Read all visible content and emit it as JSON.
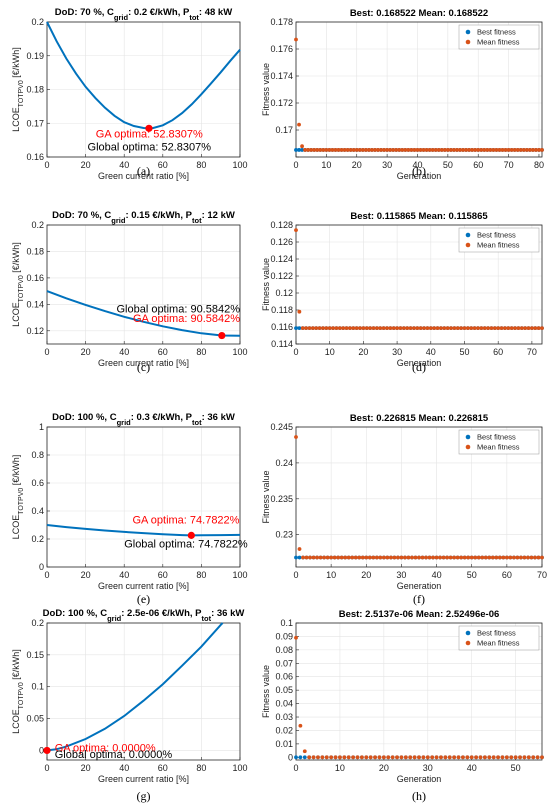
{
  "chart_data": [
    {
      "id": "a",
      "type": "line",
      "caption": "(a)",
      "title": {
        "pre": "DoD: 70 %, C",
        "sub1": "grid",
        "mid": ": 0.2 €/kWh, P",
        "sub2": "tot",
        "post": ": 48 kW"
      },
      "ylabel": {
        "main": "LCOE",
        "sub": "TOTPV0",
        "post": " [€/kWh]"
      },
      "xlabel": "Green current ratio [%]",
      "xlim": [
        0,
        100
      ],
      "ylim": [
        0.16,
        0.2
      ],
      "xticks": [
        0,
        20,
        40,
        60,
        80,
        100
      ],
      "yticks": [
        0.16,
        0.17,
        0.18,
        0.19,
        0.2
      ],
      "ytick_labels": [
        "0.16",
        "0.17",
        "0.18",
        "0.19",
        "0.2"
      ],
      "series": [
        {
          "color": "#0072BD",
          "x": [
            0,
            5,
            10,
            15,
            20,
            25,
            30,
            35,
            40,
            45,
            50,
            52.83,
            55,
            60,
            65,
            70,
            75,
            80,
            85,
            90,
            95,
            100
          ],
          "y": [
            0.2,
            0.1943,
            0.1892,
            0.1847,
            0.1808,
            0.1775,
            0.1746,
            0.1722,
            0.1703,
            0.1692,
            0.1686,
            0.1685,
            0.1686,
            0.1694,
            0.1709,
            0.173,
            0.1756,
            0.1786,
            0.1818,
            0.1851,
            0.1885,
            0.1918
          ]
        }
      ],
      "optimum": {
        "x": 52.8307,
        "y": 0.1685
      },
      "annotations": [
        {
          "text": "GA optima: 52.8307%",
          "color": "#FF0000",
          "anchor": [
            53,
            0.1658
          ]
        },
        {
          "text": "Global optima: 52.8307%",
          "color": "#000000",
          "anchor": [
            53,
            0.1619
          ]
        }
      ]
    },
    {
      "id": "b",
      "type": "scatter",
      "caption": "(b)",
      "title": "Best: 0.168522 Mean: 0.168522",
      "ylabel": "Fitness value",
      "xlabel": "Generation",
      "xlim": [
        0,
        81
      ],
      "ylim": [
        0.168,
        0.178
      ],
      "xticks": [
        0,
        10,
        20,
        30,
        40,
        50,
        60,
        70,
        80
      ],
      "yticks": [
        0.168,
        0.17,
        0.172,
        0.174,
        0.176,
        0.178
      ],
      "ytick_labels": [
        "",
        "0.17",
        "0.172",
        "0.174",
        "0.176",
        "0.178"
      ],
      "generations": 81,
      "best": {
        "name": "Best fitness",
        "color": "#0072BD",
        "value": 0.168522
      },
      "mean": {
        "name": "Mean fitness",
        "color": "#D95319",
        "value": 0.168522,
        "early": [
          0.1767,
          0.1704,
          0.1688
        ]
      }
    },
    {
      "id": "c",
      "type": "line",
      "caption": "(c)",
      "title": {
        "pre": "DoD: 70 %, C",
        "sub1": "grid",
        "mid": ": 0.15 €/kWh, P",
        "sub2": "tot",
        "post": ": 12 kW"
      },
      "ylabel": {
        "main": "LCOE",
        "sub": "TOTPV0",
        "post": " [€/kWh]"
      },
      "xlabel": "Green current ratio [%]",
      "xlim": [
        0,
        100
      ],
      "ylim": [
        0.11,
        0.2
      ],
      "xticks": [
        0,
        20,
        40,
        60,
        80,
        100
      ],
      "yticks": [
        0.12,
        0.14,
        0.16,
        0.18,
        0.2
      ],
      "ytick_labels": [
        "0.12",
        "0.14",
        "0.16",
        "0.18",
        "0.2"
      ],
      "series": [
        {
          "color": "#0072BD",
          "x": [
            0,
            10,
            20,
            30,
            40,
            50,
            60,
            70,
            80,
            90,
            90.58,
            100
          ],
          "y": [
            0.15,
            0.1446,
            0.1396,
            0.1349,
            0.1306,
            0.1268,
            0.1234,
            0.1205,
            0.1181,
            0.1165,
            0.1164,
            0.1162
          ]
        }
      ],
      "optimum": {
        "x": 90.5842,
        "y": 0.1164
      },
      "annotations": [
        {
          "text": "Global optima: 90.5842%",
          "color": "#000000",
          "anchor": [
            100,
            0.1337
          ]
        },
        {
          "text": "GA optima: 90.5842%",
          "color": "#FF0000",
          "anchor": [
            100,
            0.1268
          ]
        }
      ]
    },
    {
      "id": "d",
      "type": "scatter",
      "caption": "(d)",
      "title": "Best: 0.115865 Mean: 0.115865",
      "ylabel": "Fitness value",
      "xlabel": "Generation",
      "xlim": [
        0,
        73
      ],
      "ylim": [
        0.114,
        0.128
      ],
      "xticks": [
        0,
        10,
        20,
        30,
        40,
        50,
        60,
        70
      ],
      "yticks": [
        0.114,
        0.116,
        0.118,
        0.12,
        0.122,
        0.124,
        0.126,
        0.128
      ],
      "ytick_labels": [
        "0.114",
        "0.116",
        "0.118",
        "0.12",
        "0.122",
        "0.124",
        "0.126",
        "0.128"
      ],
      "generations": 73,
      "best": {
        "name": "Best fitness",
        "color": "#0072BD",
        "value": 0.115865
      },
      "mean": {
        "name": "Mean fitness",
        "color": "#D95319",
        "value": 0.115865,
        "early": [
          0.1274,
          0.1178
        ]
      }
    },
    {
      "id": "e",
      "type": "line",
      "caption": "(e)",
      "title": {
        "pre": "DoD: 100 %, C",
        "sub1": "grid",
        "mid": ": 0.3 €/kWh, P",
        "sub2": "tot",
        "post": ": 36 kW"
      },
      "ylabel": {
        "main": "LCOE",
        "sub": "TOTPV0",
        "post": " [€/kWh]"
      },
      "xlabel": "Green current ratio [%]",
      "xlim": [
        0,
        100
      ],
      "ylim": [
        0,
        1
      ],
      "xticks": [
        0,
        20,
        40,
        60,
        80,
        100
      ],
      "yticks": [
        0,
        0.2,
        0.4,
        0.6,
        0.8,
        1
      ],
      "ytick_labels": [
        "0",
        "0.2",
        "0.4",
        "0.6",
        "0.8",
        "1"
      ],
      "series": [
        {
          "color": "#0072BD",
          "x": [
            0,
            10,
            20,
            30,
            40,
            50,
            60,
            70,
            74.78,
            80,
            90,
            100
          ],
          "y": [
            0.3,
            0.285,
            0.272,
            0.261,
            0.251,
            0.242,
            0.234,
            0.228,
            0.226,
            0.227,
            0.228,
            0.229
          ]
        }
      ],
      "optimum": {
        "x": 74.7822,
        "y": 0.226
      },
      "annotations": [
        {
          "text": "GA optima: 74.7822%",
          "color": "#FF0000",
          "anchor": [
            72,
            0.31
          ]
        },
        {
          "text": "Global optima: 74.7822%",
          "color": "#000000",
          "anchor": [
            72,
            0.14
          ]
        }
      ]
    },
    {
      "id": "f",
      "type": "scatter",
      "caption": "(f)",
      "title": "Best: 0.226815 Mean: 0.226815",
      "ylabel": "Fitness value",
      "xlabel": "Generation",
      "xlim": [
        0,
        70
      ],
      "ylim": [
        0.2255,
        0.245
      ],
      "xticks": [
        0,
        10,
        20,
        30,
        40,
        50,
        60,
        70
      ],
      "yticks": [
        0.23,
        0.235,
        0.24,
        0.245
      ],
      "ytick_labels": [
        "0.23",
        "0.235",
        "0.24",
        "0.245"
      ],
      "generations": 70,
      "best": {
        "name": "Best fitness",
        "color": "#0072BD",
        "value": 0.226815
      },
      "mean": {
        "name": "Mean fitness",
        "color": "#D95319",
        "value": 0.226815,
        "early": [
          0.2436,
          0.228
        ]
      }
    },
    {
      "id": "g",
      "type": "line",
      "caption": "(g)",
      "title": {
        "pre": "DoD: 100 %, C",
        "sub1": "grid",
        "mid": ": 2.5e-06 €/kWh, P",
        "sub2": "tot",
        "post": ": 36 kW"
      },
      "ylabel": {
        "main": "LCOE",
        "sub": "TOTPV0",
        "post": " [€/kWh]"
      },
      "xlabel": "Green current ratio [%]",
      "xlim": [
        0,
        100
      ],
      "ylim": [
        -0.015,
        0.2
      ],
      "xticks": [
        0,
        20,
        40,
        60,
        80,
        100
      ],
      "yticks": [
        0,
        0.05,
        0.1,
        0.15,
        0.2
      ],
      "ytick_labels": [
        "0",
        "0.05",
        "0.1",
        "0.15",
        "0.2"
      ],
      "series": [
        {
          "color": "#0072BD",
          "x": [
            0,
            5,
            10,
            20,
            30,
            40,
            50,
            60,
            70,
            80,
            90,
            91
          ],
          "y": [
            0,
            0.002,
            0.006,
            0.018,
            0.034,
            0.054,
            0.078,
            0.104,
            0.133,
            0.163,
            0.197,
            0.2
          ]
        }
      ],
      "optimum": {
        "x": 0.0,
        "y": 0.0
      },
      "annotations": [
        {
          "text": "GA optima: 0.0000%",
          "color": "#FF0000",
          "anchor": [
            4,
            -0.002
          ]
        },
        {
          "text": "Global optima: 0.0000%",
          "color": "#000000",
          "anchor": [
            4,
            -0.012
          ]
        }
      ]
    },
    {
      "id": "h",
      "type": "scatter",
      "caption": "(h)",
      "title": "Best: 2.5137e-06 Mean: 2.52496e-06",
      "ylabel": "Fitness value",
      "xlabel": "Generation",
      "xlim": [
        0,
        56
      ],
      "ylim": [
        -0.002,
        0.1
      ],
      "xticks": [
        0,
        10,
        20,
        30,
        40,
        50
      ],
      "yticks": [
        0,
        0.01,
        0.02,
        0.03,
        0.04,
        0.05,
        0.06,
        0.07,
        0.08,
        0.09,
        0.1
      ],
      "ytick_labels": [
        "0",
        "0.01",
        "0.02",
        "0.03",
        "0.04",
        "0.05",
        "0.06",
        "0.07",
        "0.08",
        "0.09",
        "0.1"
      ],
      "generations": 56,
      "best": {
        "name": "Best fitness",
        "color": "#0072BD",
        "value": 2.5137e-06
      },
      "mean": {
        "name": "Mean fitness",
        "color": "#D95319",
        "value": 2.52496e-06,
        "early": [
          0.089,
          0.0235,
          0.0045
        ]
      }
    }
  ]
}
